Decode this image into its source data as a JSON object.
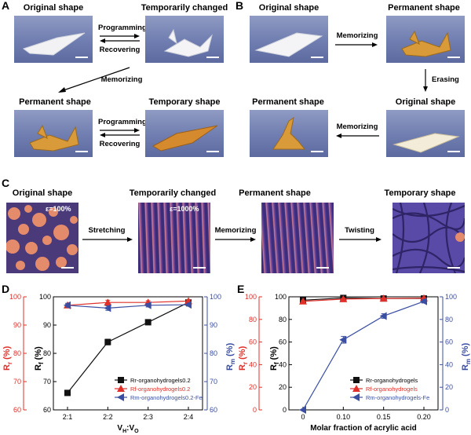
{
  "panels": {
    "A": {
      "letter": "A",
      "original_shape": "Original shape",
      "temporarily_changed": "Temporarily changed",
      "programming": "Programming",
      "recovering": "Recovering",
      "memorizing": "Memorizing",
      "permanent_shape": "Permanent shape",
      "temporary_shape": "Temporary shape",
      "programming2": "Programming",
      "recovering2": "Recovering"
    },
    "B": {
      "letter": "B",
      "original_shape": "Original shape",
      "permanent_shape": "Permanent shape",
      "memorizing": "Memorizing",
      "erasing": "Erasing",
      "permanent_shape2": "Permanent shape",
      "original_shape2": "Original shape",
      "memorizing2": "Memorizing"
    },
    "C": {
      "letter": "C",
      "original_shape": "Original shape",
      "temporarily_changed": "Temporarily changed",
      "permanent_shape": "Permanent shape",
      "temporary_shape": "Temporary shape",
      "stretching": "Stretching",
      "memorizing": "Memorizing",
      "twisting": "Twisting",
      "strain1": "ε=100%",
      "strain2": "ε=1000%"
    }
  },
  "colors": {
    "black": "#111111",
    "red": "#e0302a",
    "blue": "#3b4fa2"
  },
  "chart_data": [
    {
      "panel": "D",
      "type": "line",
      "categories": [
        "2:1",
        "2:2",
        "2:3",
        "2:4"
      ],
      "xlabel": "VH:VO",
      "ylabel_inner": "Rf (%)",
      "ylabel_left": "Rr (%)",
      "ylabel_right": "Rm (%)",
      "ylim": [
        60,
        100
      ],
      "yticks": [
        60,
        70,
        80,
        90,
        100
      ],
      "series": [
        {
          "name": "Rr-organohydrogels0.2",
          "color": "#111111",
          "marker": "square",
          "values": [
            66,
            84,
            91,
            98
          ],
          "err": [
            0.8,
            1.0,
            0.4,
            0.4
          ]
        },
        {
          "name": "Rf-organohydrogels0.2",
          "color": "#e0302a",
          "marker": "triangle-up",
          "values": [
            97,
            98,
            98,
            98.5
          ],
          "err": [
            0.3,
            0.8,
            0.6,
            0.4
          ]
        },
        {
          "name": "Rm-organohydrogels0.2-Fe",
          "color": "#3b4fa2",
          "marker": "triangle-left",
          "values": [
            97,
            96,
            97,
            97.2
          ],
          "err": [
            0.7,
            0.8,
            0.6,
            0.5
          ]
        }
      ]
    },
    {
      "panel": "E",
      "type": "line",
      "xlabel": "Molar fraction of acrylic acid",
      "x_ticklabels": [
        "0",
        "0.10",
        "0.15",
        "0.20"
      ],
      "ylabel_inner": "Rf (%)",
      "ylabel_left": "Rr (%)",
      "ylabel_right": "Rm (%)",
      "ylim": [
        0,
        100
      ],
      "yticks": [
        0,
        20,
        40,
        60,
        80,
        100
      ],
      "series": [
        {
          "name": "Rr-organohydrogels",
          "color": "#111111",
          "marker": "square",
          "values": [
            97,
            99,
            98.5,
            98.5
          ],
          "err": [
            0.5,
            0.6,
            0.4,
            0.4
          ]
        },
        {
          "name": "Rf-organohydrogels",
          "color": "#e0302a",
          "marker": "triangle-up",
          "values": [
            96,
            98,
            98.5,
            98.8
          ],
          "err": [
            0.5,
            0.5,
            0.4,
            0.3
          ]
        },
        {
          "name": "Rm-organohydrogels-Fe",
          "color": "#3b4fa2",
          "marker": "triangle-left",
          "values": [
            0,
            62,
            83,
            96
          ],
          "err": [
            0,
            3,
            2,
            1.5
          ]
        }
      ]
    }
  ]
}
